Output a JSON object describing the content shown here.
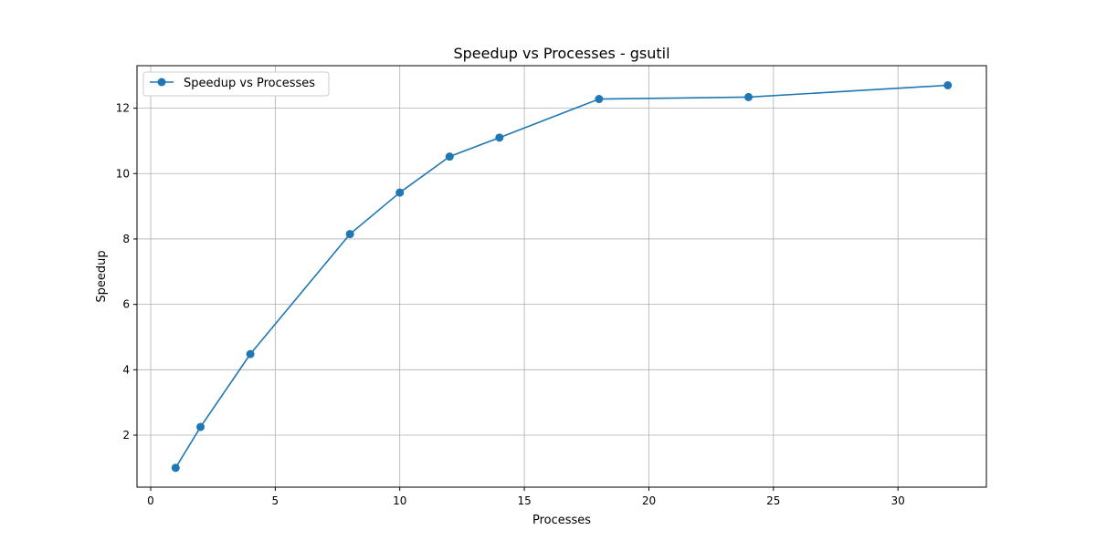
{
  "chart_data": {
    "type": "line",
    "title": "Speedup vs Processes  - gsutil",
    "xlabel": "Processes",
    "ylabel": "Speedup",
    "xlim": [
      -0.55,
      33.55
    ],
    "ylim": [
      0.41,
      13.3
    ],
    "xticks": [
      0,
      5,
      10,
      15,
      20,
      25,
      30
    ],
    "yticks": [
      2,
      4,
      6,
      8,
      10,
      12
    ],
    "grid": true,
    "legend_position": "top-left",
    "series": [
      {
        "name": "Speedup vs Processes",
        "color": "#1f77b4",
        "marker": "circle",
        "x": [
          1,
          2,
          4,
          8,
          10,
          12,
          14,
          18,
          24,
          32
        ],
        "y": [
          1.0,
          2.25,
          4.48,
          8.15,
          9.42,
          10.52,
          11.1,
          12.28,
          12.34,
          12.7
        ]
      }
    ]
  }
}
